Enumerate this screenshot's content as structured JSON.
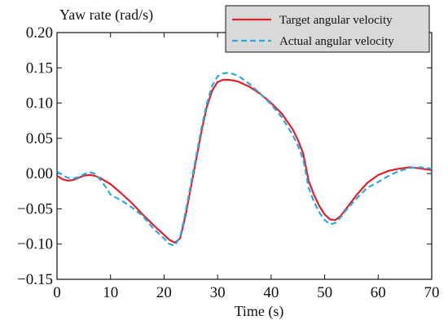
{
  "chart_data": {
    "type": "line",
    "title": "",
    "xlabel": "Time (s)",
    "ylabel": "Yaw rate (rad/s)",
    "xlim": [
      0,
      70
    ],
    "ylim": [
      -0.15,
      0.2
    ],
    "x_ticks": [
      0,
      10,
      20,
      30,
      40,
      50,
      60,
      70
    ],
    "x_tick_labels": [
      "0",
      "10",
      "20",
      "30",
      "40",
      "50",
      "60",
      "70"
    ],
    "y_ticks": [
      -0.15,
      -0.1,
      -0.05,
      0.0,
      0.05,
      0.1,
      0.15,
      0.2
    ],
    "y_tick_labels": [
      "−0.15",
      "−0.10",
      "−0.05",
      "0.00",
      "0.05",
      "0.10",
      "0.15",
      "0.20"
    ],
    "grid": false,
    "legend_position": "top-right",
    "series": [
      {
        "name": "Target angular velocity",
        "color": "#e3202a",
        "style": "solid",
        "x": [
          0,
          1,
          2,
          3,
          4,
          5,
          6,
          7,
          8,
          10,
          12,
          14,
          16,
          18,
          20,
          21,
          22,
          23,
          24,
          25,
          26,
          27,
          28,
          29,
          30,
          31,
          32,
          33,
          34,
          36,
          38,
          40,
          42,
          44,
          45,
          46,
          47,
          48,
          49,
          50,
          51,
          52,
          53,
          54,
          56,
          58,
          60,
          62,
          64,
          66,
          67,
          68,
          70
        ],
        "y": [
          -0.003,
          -0.008,
          -0.01,
          -0.009,
          -0.006,
          -0.003,
          -0.002,
          -0.003,
          -0.006,
          -0.015,
          -0.028,
          -0.042,
          -0.058,
          -0.073,
          -0.087,
          -0.094,
          -0.098,
          -0.092,
          -0.06,
          -0.02,
          0.02,
          0.06,
          0.095,
          0.118,
          0.13,
          0.133,
          0.133,
          0.132,
          0.13,
          0.123,
          0.113,
          0.1,
          0.085,
          0.063,
          0.048,
          0.028,
          -0.01,
          -0.03,
          -0.046,
          -0.058,
          -0.065,
          -0.066,
          -0.06,
          -0.05,
          -0.03,
          -0.013,
          -0.002,
          0.004,
          0.007,
          0.009,
          0.008,
          0.007,
          0.005
        ]
      },
      {
        "name": "Actual angular velocity",
        "color": "#29aae1",
        "style": "dashed",
        "x": [
          0,
          1,
          2,
          3,
          4,
          5,
          6,
          7,
          8,
          9,
          10,
          12,
          14,
          16,
          18,
          20,
          21,
          22,
          23,
          24,
          25,
          26,
          27,
          28,
          29,
          30,
          31,
          32,
          33,
          34,
          36,
          38,
          40,
          42,
          44,
          45,
          46,
          47,
          48,
          49,
          50,
          51,
          52,
          53,
          54,
          56,
          58,
          60,
          62,
          64,
          66,
          68,
          70
        ],
        "y": [
          0.003,
          -0.002,
          -0.006,
          -0.007,
          -0.005,
          -0.001,
          0.002,
          0.0,
          -0.008,
          -0.018,
          -0.03,
          -0.038,
          -0.048,
          -0.06,
          -0.078,
          -0.092,
          -0.1,
          -0.102,
          -0.09,
          -0.055,
          -0.015,
          0.025,
          0.065,
          0.1,
          0.125,
          0.138,
          0.142,
          0.143,
          0.141,
          0.138,
          0.127,
          0.113,
          0.098,
          0.08,
          0.055,
          0.04,
          0.02,
          -0.02,
          -0.04,
          -0.055,
          -0.066,
          -0.072,
          -0.07,
          -0.062,
          -0.052,
          -0.035,
          -0.02,
          -0.012,
          -0.003,
          0.004,
          0.008,
          0.009,
          0.007
        ]
      }
    ]
  }
}
